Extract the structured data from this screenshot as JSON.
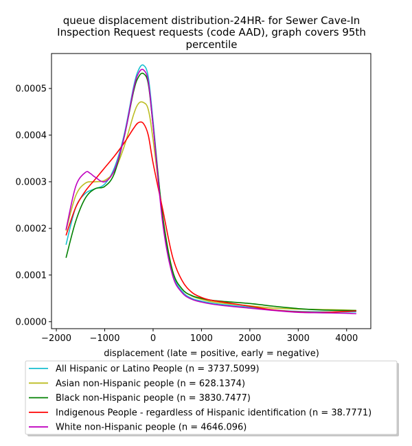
{
  "chart_data": {
    "type": "line",
    "title_lines": [
      "queue displacement distribution-24HR-  for Sewer Cave-In",
      "Inspection Request  requests (code AAD), graph covers 95th",
      "percentile"
    ],
    "xlabel": "displacement (late = positive, early = negative)",
    "ylabel": "",
    "xlim": [
      -2100,
      4500
    ],
    "ylim": [
      -1.5e-05,
      0.000575
    ],
    "xticks": [
      -2000,
      -1000,
      0,
      1000,
      2000,
      3000,
      4000
    ],
    "xtick_labels": [
      "−2000",
      "−1000",
      "0",
      "1000",
      "2000",
      "3000",
      "4000"
    ],
    "yticks": [
      0,
      0.0001,
      0.0002,
      0.0003,
      0.0004,
      0.0005
    ],
    "ytick_labels": [
      "0.0000",
      "0.0001",
      "0.0002",
      "0.0003",
      "0.0004",
      "0.0005"
    ],
    "grid": false,
    "legend_position": "below",
    "series": [
      {
        "name": "All Hispanic or Latino People (n = 3737.5099)",
        "color": "#17becf",
        "x": [
          -1800,
          -1600,
          -1400,
          -1200,
          -1000,
          -800,
          -600,
          -400,
          -300,
          -200,
          -100,
          0,
          200,
          400,
          600,
          800,
          1000,
          1200,
          1500,
          2000,
          2500,
          3000,
          3500,
          4000,
          4200
        ],
        "y": [
          0.000165,
          0.000245,
          0.000275,
          0.000285,
          0.000295,
          0.00033,
          0.0004,
          0.000505,
          0.00054,
          0.00055,
          0.000525,
          0.00043,
          0.00022,
          0.000105,
          6.5e-05,
          5e-05,
          4.4e-05,
          4e-05,
          3.6e-05,
          3.1e-05,
          2.5e-05,
          2.2e-05,
          2.1e-05,
          2.1e-05,
          2.1e-05
        ]
      },
      {
        "name": "Asian non-Hispanic people (n = 628.1374)",
        "color": "#bcbd22",
        "x": [
          -1800,
          -1600,
          -1400,
          -1200,
          -1000,
          -800,
          -600,
          -400,
          -300,
          -200,
          -100,
          0,
          200,
          400,
          600,
          800,
          1000,
          1200,
          1500,
          2000,
          2500,
          3000,
          3500,
          4000,
          4200
        ],
        "y": [
          0.000195,
          0.00027,
          0.000297,
          0.0003,
          0.000303,
          0.000323,
          0.000375,
          0.000445,
          0.000468,
          0.00047,
          0.000455,
          0.00039,
          0.000225,
          0.00011,
          7e-05,
          5.5e-05,
          4.8e-05,
          4.3e-05,
          3.9e-05,
          3.4e-05,
          2.9e-05,
          2.7e-05,
          2.6e-05,
          2.5e-05,
          2.4e-05
        ]
      },
      {
        "name": "Black non-Hispanic people (n = 3830.7477)",
        "color": "#008000",
        "x": [
          -1800,
          -1600,
          -1400,
          -1200,
          -1000,
          -800,
          -600,
          -400,
          -300,
          -200,
          -100,
          0,
          200,
          400,
          600,
          800,
          1000,
          1200,
          1500,
          2000,
          2500,
          3000,
          3500,
          4000,
          4200
        ],
        "y": [
          0.000137,
          0.000215,
          0.000265,
          0.000285,
          0.00029,
          0.000318,
          0.000395,
          0.000495,
          0.000525,
          0.000532,
          0.00051,
          0.00042,
          0.000225,
          0.00011,
          7e-05,
          5.6e-05,
          5e-05,
          4.6e-05,
          4.3e-05,
          3.9e-05,
          3.3e-05,
          2.8e-05,
          2.5e-05,
          2.4e-05,
          2.4e-05
        ]
      },
      {
        "name": "Indigenous People - regardless of Hispanic identification (n = 38.7771)",
        "color": "#ff0000",
        "x": [
          -1800,
          -1600,
          -1400,
          -1200,
          -1000,
          -800,
          -600,
          -400,
          -300,
          -200,
          -100,
          0,
          200,
          400,
          600,
          800,
          1000,
          1200,
          1500,
          2000,
          2500,
          3000,
          3500,
          4000,
          4200
        ],
        "y": [
          0.000185,
          0.000245,
          0.00028,
          0.000305,
          0.00033,
          0.000355,
          0.000383,
          0.000415,
          0.000427,
          0.000425,
          0.0004,
          0.00034,
          0.00024,
          0.00014,
          8.8e-05,
          6.3e-05,
          5.2e-05,
          4.6e-05,
          4.1e-05,
          3.3e-05,
          2.5e-05,
          2.1e-05,
          2e-05,
          2.2e-05,
          2.3e-05
        ]
      },
      {
        "name": "White non-Hispanic people (n = 4646.096)",
        "color": "#bf00bf",
        "x": [
          -1800,
          -1600,
          -1400,
          -1300,
          -1200,
          -1000,
          -800,
          -600,
          -400,
          -300,
          -200,
          -100,
          0,
          200,
          400,
          600,
          800,
          1000,
          1200,
          1500,
          2000,
          2500,
          3000,
          3500,
          4000,
          4200
        ],
        "y": [
          0.000197,
          0.00029,
          0.00032,
          0.000318,
          0.00031,
          0.0003,
          0.000325,
          0.000395,
          0.0005,
          0.000533,
          0.00054,
          0.000515,
          0.00042,
          0.00021,
          0.0001,
          6.2e-05,
          4.8e-05,
          4.2e-05,
          3.8e-05,
          3.4e-05,
          2.9e-05,
          2.4e-05,
          2e-05,
          1.9e-05,
          1.8e-05,
          1.7e-05
        ]
      }
    ]
  }
}
